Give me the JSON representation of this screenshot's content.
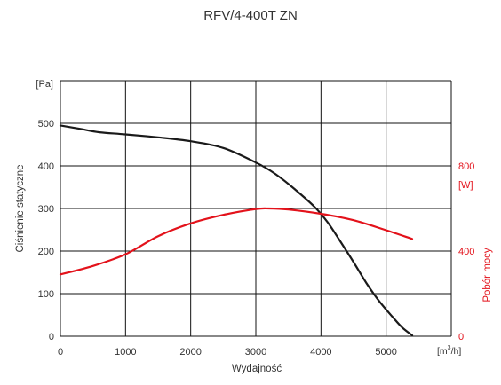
{
  "chart_data": {
    "type": "line",
    "title": "RFV/4-400T ZN",
    "xlabel": "Wydajność",
    "x_unit_prefix": "[m",
    "x_unit_sup": "3",
    "x_unit_suffix": "/h]",
    "xlim": [
      0,
      6000
    ],
    "xticks": [
      0,
      1000,
      2000,
      3000,
      4000,
      5000
    ],
    "grid": true,
    "y_left": {
      "label": "Ciśnienie statyczne",
      "unit": "[Pa]",
      "lim": [
        0,
        600
      ],
      "ticks": [
        0,
        100,
        200,
        300,
        400,
        500
      ]
    },
    "y_right": {
      "label": "Pobór mocy",
      "unit": "[W]",
      "lim": [
        0,
        1200
      ],
      "ticks": [
        0,
        400,
        800
      ]
    },
    "series": [
      {
        "axis": "left",
        "color": "#1a1a1a",
        "points": [
          [
            0,
            495
          ],
          [
            300,
            487
          ],
          [
            600,
            479
          ],
          [
            1000,
            474
          ],
          [
            1500,
            467
          ],
          [
            2000,
            458
          ],
          [
            2500,
            442
          ],
          [
            3000,
            408
          ],
          [
            3300,
            381
          ],
          [
            3600,
            345
          ],
          [
            3900,
            304
          ],
          [
            4100,
            268
          ],
          [
            4300,
            222
          ],
          [
            4500,
            174
          ],
          [
            4700,
            124
          ],
          [
            4900,
            81
          ],
          [
            5100,
            45
          ],
          [
            5250,
            20
          ],
          [
            5400,
            2
          ]
        ]
      },
      {
        "axis": "right",
        "color": "#e3121b",
        "points": [
          [
            0,
            290
          ],
          [
            500,
            330
          ],
          [
            1000,
            385
          ],
          [
            1500,
            470
          ],
          [
            2000,
            530
          ],
          [
            2500,
            570
          ],
          [
            3000,
            597
          ],
          [
            3200,
            600
          ],
          [
            3500,
            595
          ],
          [
            4000,
            575
          ],
          [
            4500,
            545
          ],
          [
            5000,
            498
          ],
          [
            5400,
            457
          ]
        ]
      }
    ]
  },
  "colors": {
    "left_axis": "#333333",
    "right_axis": "#e3121b",
    "grid": "#111111"
  }
}
